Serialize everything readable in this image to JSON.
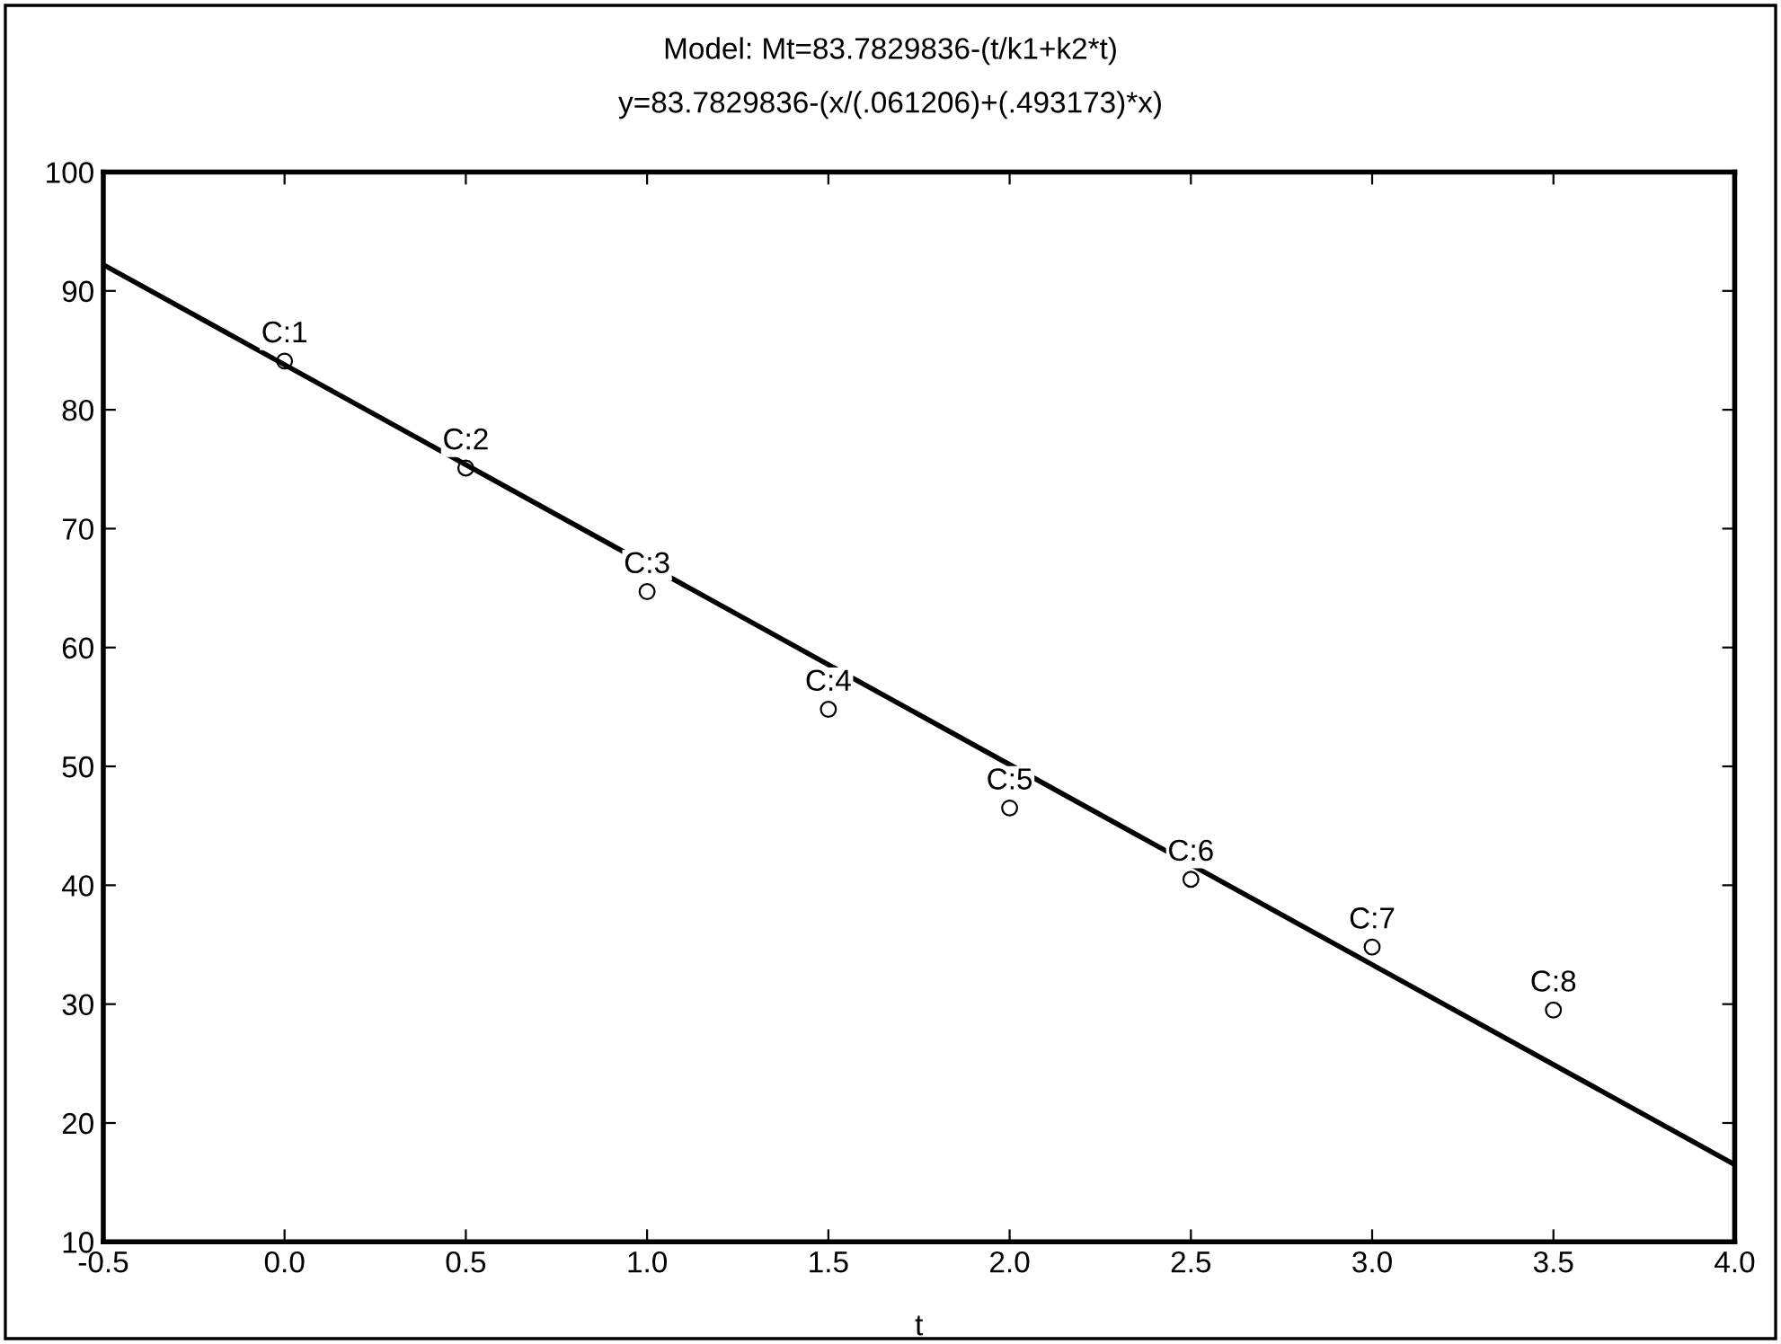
{
  "chart_data": {
    "type": "scatter",
    "title": "Model: Mt=83.7829836-(t/k1+k2*t)",
    "subtitle": "y=83.7829836-(x/(.061206)+(.493173)*x)",
    "xlabel": "t",
    "xlim": [
      -0.5,
      4.0
    ],
    "ylim": [
      10,
      100
    ],
    "xticks": [
      {
        "value": -0.5,
        "label": "-0.5"
      },
      {
        "value": 0.0,
        "label": "0.0"
      },
      {
        "value": 0.5,
        "label": "0.5"
      },
      {
        "value": 1.0,
        "label": "1.0"
      },
      {
        "value": 1.5,
        "label": "1.5"
      },
      {
        "value": 2.0,
        "label": "2.0"
      },
      {
        "value": 2.5,
        "label": "2.5"
      },
      {
        "value": 3.0,
        "label": "3.0"
      },
      {
        "value": 3.5,
        "label": "3.5"
      },
      {
        "value": 4.0,
        "label": "4.0"
      }
    ],
    "yticks": [
      10,
      20,
      30,
      40,
      50,
      60,
      70,
      80,
      90,
      100
    ],
    "grid": false,
    "marker": "circle",
    "series": [
      {
        "color": "#000000",
        "x": [
          0.0,
          0.5,
          1.0,
          1.5,
          2.0,
          2.5,
          3.0,
          3.5
        ],
        "values": [
          84.1,
          75.1,
          64.7,
          54.8,
          46.5,
          40.5,
          34.8,
          29.5
        ]
      },
      {
        "type": "line",
        "color": "#000000",
        "marker": "none",
        "line_style": "solid",
        "x": [
          -0.5,
          4.0
        ],
        "values": [
          92.2,
          16.5
        ]
      }
    ],
    "annotations": [
      {
        "text": "C:1",
        "x": 0.0,
        "y": 84.1
      },
      {
        "text": "C:2",
        "x": 0.5,
        "y": 75.1
      },
      {
        "text": "C:3",
        "x": 1.0,
        "y": 64.7
      },
      {
        "text": "C:4",
        "x": 1.5,
        "y": 54.8
      },
      {
        "text": "C:5",
        "x": 2.0,
        "y": 46.5
      },
      {
        "text": "C:6",
        "x": 2.5,
        "y": 40.5
      },
      {
        "text": "C:7",
        "x": 3.0,
        "y": 34.8
      },
      {
        "text": "C:8",
        "x": 3.5,
        "y": 29.5
      }
    ]
  }
}
